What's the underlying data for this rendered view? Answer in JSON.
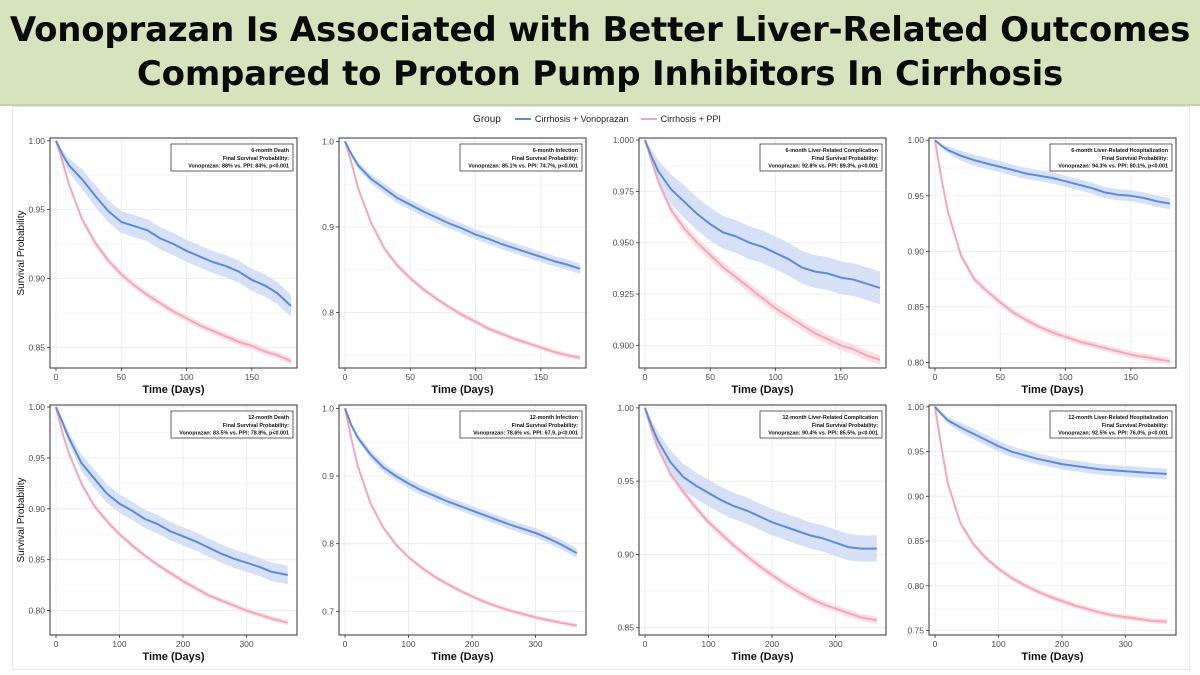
{
  "title": {
    "line1": "Vonoprazan Is Associated with Better Liver-Related Outcomes",
    "line2": "Compared to Proton Pump Inhibitors In Cirrhosis"
  },
  "legend": {
    "title": "Group",
    "entries": [
      {
        "label": "Cirrhosis + Vonoprazan",
        "color": "#5b8bd9"
      },
      {
        "label": "Cirrhosis + PPI",
        "color": "#f2a5b8"
      }
    ]
  },
  "colors": {
    "vono_line": "#5b8bd9",
    "vono_band": "#cfdcf6",
    "ppi_line": "#f4a7b9",
    "ppi_band": "#fbdbe3",
    "grid": "#ebebeb",
    "axis": "#333333"
  },
  "chart_data": [
    {
      "type": "line",
      "title": "6-month Death",
      "info_title": "Final Survival Probability:",
      "summary": "Vonoprazan: 88% vs. PPI: 84%, p<0.001",
      "xlabel": "Time (Days)",
      "ylabel": "Survival Probability",
      "xlim": [
        0,
        180
      ],
      "ylim": [
        0.835,
        1.002
      ],
      "xticks": [
        0,
        50,
        100,
        150
      ],
      "yticks": [
        "0.85",
        "0.90",
        "0.95",
        "1.00"
      ],
      "series": [
        {
          "name": "Cirrhosis + Vonoprazan",
          "x": [
            0,
            5,
            10,
            20,
            30,
            40,
            50,
            60,
            70,
            80,
            90,
            100,
            110,
            120,
            130,
            140,
            150,
            160,
            170,
            180
          ],
          "y": [
            1.0,
            0.99,
            0.982,
            0.972,
            0.96,
            0.949,
            0.941,
            0.938,
            0.935,
            0.929,
            0.925,
            0.92,
            0.916,
            0.912,
            0.909,
            0.905,
            0.899,
            0.895,
            0.889,
            0.88
          ],
          "ci": 0.008
        },
        {
          "name": "Cirrhosis + PPI",
          "x": [
            0,
            5,
            10,
            20,
            30,
            40,
            50,
            60,
            70,
            80,
            90,
            100,
            110,
            120,
            130,
            140,
            150,
            160,
            170,
            180
          ],
          "y": [
            1.0,
            0.985,
            0.968,
            0.943,
            0.926,
            0.913,
            0.903,
            0.895,
            0.888,
            0.882,
            0.876,
            0.871,
            0.866,
            0.862,
            0.858,
            0.854,
            0.851,
            0.847,
            0.844,
            0.84
          ],
          "ci": 0.0025
        }
      ]
    },
    {
      "type": "line",
      "title": "6-month Infection",
      "info_title": "Final Survival Probability:",
      "summary": "Vonoprazan: 85.1% vs. PPI: 74.7%, p<0.001",
      "xlabel": "Time (Days)",
      "ylabel": "",
      "xlim": [
        0,
        180
      ],
      "ylim": [
        0.735,
        1.004
      ],
      "xticks": [
        0,
        50,
        100,
        150
      ],
      "yticks": [
        "0.8",
        "0.9",
        "1.0"
      ],
      "series": [
        {
          "name": "Cirrhosis + Vonoprazan",
          "x": [
            0,
            5,
            10,
            20,
            30,
            40,
            50,
            60,
            70,
            80,
            90,
            100,
            110,
            120,
            130,
            140,
            150,
            160,
            170,
            180
          ],
          "y": [
            1.0,
            0.985,
            0.972,
            0.956,
            0.945,
            0.934,
            0.926,
            0.918,
            0.911,
            0.904,
            0.898,
            0.891,
            0.886,
            0.88,
            0.875,
            0.87,
            0.865,
            0.86,
            0.856,
            0.851
          ],
          "ci": 0.006
        },
        {
          "name": "Cirrhosis + PPI",
          "x": [
            0,
            5,
            10,
            20,
            30,
            40,
            50,
            60,
            70,
            80,
            90,
            100,
            110,
            120,
            130,
            140,
            150,
            160,
            170,
            180
          ],
          "y": [
            1.0,
            0.975,
            0.945,
            0.905,
            0.875,
            0.855,
            0.84,
            0.827,
            0.816,
            0.806,
            0.797,
            0.789,
            0.781,
            0.775,
            0.769,
            0.764,
            0.759,
            0.754,
            0.75,
            0.747
          ],
          "ci": 0.003
        }
      ]
    },
    {
      "type": "line",
      "title": "6-month Liver-Related Complication",
      "info_title": "Final Survival Probability:",
      "summary": "Vonoprazan: 92.8% vs. PPI: 89.3%, p<0.001",
      "xlabel": "Time (Days)",
      "ylabel": "",
      "xlim": [
        0,
        180
      ],
      "ylim": [
        0.889,
        1.001
      ],
      "xticks": [
        0,
        50,
        100,
        150
      ],
      "yticks": [
        "0.900",
        "0.925",
        "0.950",
        "0.975",
        "1.000"
      ],
      "series": [
        {
          "name": "Cirrhosis + Vonoprazan",
          "x": [
            0,
            5,
            10,
            20,
            30,
            40,
            50,
            60,
            70,
            80,
            90,
            100,
            110,
            120,
            130,
            140,
            150,
            160,
            170,
            180
          ],
          "y": [
            1.0,
            0.992,
            0.985,
            0.976,
            0.97,
            0.964,
            0.959,
            0.955,
            0.953,
            0.95,
            0.948,
            0.945,
            0.942,
            0.938,
            0.936,
            0.935,
            0.933,
            0.932,
            0.93,
            0.928
          ],
          "ci": 0.008
        },
        {
          "name": "Cirrhosis + PPI",
          "x": [
            0,
            5,
            10,
            20,
            30,
            40,
            50,
            60,
            70,
            80,
            90,
            100,
            110,
            120,
            130,
            140,
            150,
            160,
            170,
            180
          ],
          "y": [
            1.0,
            0.99,
            0.98,
            0.966,
            0.957,
            0.95,
            0.944,
            0.938,
            0.933,
            0.928,
            0.923,
            0.918,
            0.914,
            0.91,
            0.906,
            0.903,
            0.9,
            0.898,
            0.895,
            0.893
          ],
          "ci": 0.0025
        }
      ]
    },
    {
      "type": "line",
      "title": "6-month Liver-Related Hospitalization",
      "info_title": "Final Survival Probability:",
      "summary": "Vonoprazan: 94.3% vs. PPI: 80.1%, p<0.001",
      "xlabel": "Time (Days)",
      "ylabel": "",
      "xlim": [
        0,
        180
      ],
      "ylim": [
        0.795,
        1.002
      ],
      "xticks": [
        0,
        50,
        100,
        150
      ],
      "yticks": [
        "0.80",
        "0.85",
        "0.90",
        "0.95",
        "1.00"
      ],
      "series": [
        {
          "name": "Cirrhosis + Vonoprazan",
          "x": [
            0,
            5,
            10,
            20,
            30,
            40,
            50,
            60,
            70,
            80,
            90,
            100,
            110,
            120,
            130,
            140,
            150,
            160,
            170,
            180
          ],
          "y": [
            1.0,
            0.995,
            0.991,
            0.986,
            0.982,
            0.979,
            0.976,
            0.973,
            0.97,
            0.968,
            0.966,
            0.963,
            0.96,
            0.957,
            0.953,
            0.951,
            0.95,
            0.948,
            0.945,
            0.943
          ],
          "ci": 0.005
        },
        {
          "name": "Cirrhosis + PPI",
          "x": [
            0,
            5,
            10,
            20,
            30,
            40,
            50,
            60,
            70,
            80,
            90,
            100,
            110,
            120,
            130,
            140,
            150,
            160,
            170,
            180
          ],
          "y": [
            1.0,
            0.965,
            0.935,
            0.896,
            0.875,
            0.864,
            0.854,
            0.845,
            0.838,
            0.832,
            0.827,
            0.823,
            0.819,
            0.816,
            0.813,
            0.81,
            0.807,
            0.805,
            0.803,
            0.801
          ],
          "ci": 0.003
        }
      ]
    },
    {
      "type": "line",
      "title": "12-month Death",
      "info_title": "Final Survival Probability:",
      "summary": "Vonoprazan: 83.5% vs. PPI: 78.8%, p<0.001",
      "xlabel": "Time (Days)",
      "ylabel": "Survival Probability",
      "xlim": [
        0,
        370
      ],
      "ylim": [
        0.776,
        1.002
      ],
      "xticks": [
        0,
        100,
        200,
        300
      ],
      "yticks": [
        "0.80",
        "0.85",
        "0.90",
        "0.95",
        "1.00"
      ],
      "series": [
        {
          "name": "Cirrhosis + Vonoprazan",
          "x": [
            0,
            10,
            20,
            40,
            60,
            80,
            100,
            120,
            140,
            160,
            180,
            200,
            220,
            240,
            260,
            280,
            300,
            320,
            340,
            365
          ],
          "y": [
            1.0,
            0.985,
            0.97,
            0.945,
            0.93,
            0.915,
            0.905,
            0.898,
            0.89,
            0.885,
            0.878,
            0.873,
            0.868,
            0.862,
            0.856,
            0.851,
            0.847,
            0.843,
            0.838,
            0.835
          ],
          "ci": 0.009
        },
        {
          "name": "Cirrhosis + PPI",
          "x": [
            0,
            10,
            20,
            40,
            60,
            80,
            100,
            120,
            140,
            160,
            180,
            200,
            220,
            240,
            260,
            280,
            300,
            320,
            340,
            365
          ],
          "y": [
            1.0,
            0.975,
            0.955,
            0.925,
            0.903,
            0.888,
            0.875,
            0.864,
            0.854,
            0.845,
            0.837,
            0.829,
            0.822,
            0.815,
            0.81,
            0.805,
            0.8,
            0.796,
            0.792,
            0.788
          ],
          "ci": 0.0025
        }
      ]
    },
    {
      "type": "line",
      "title": "12-month Infection",
      "info_title": "Final Survival Probability:",
      "summary": "Vonoprazan: 78.6% vs. PPI: 67.9, p<0.001",
      "xlabel": "Time (Days)",
      "ylabel": "",
      "xlim": [
        0,
        370
      ],
      "ylim": [
        0.665,
        1.005
      ],
      "xticks": [
        0,
        100,
        200,
        300
      ],
      "yticks": [
        "0.7",
        "0.8",
        "0.9",
        "1.0"
      ],
      "series": [
        {
          "name": "Cirrhosis + Vonoprazan",
          "x": [
            0,
            10,
            20,
            40,
            60,
            80,
            100,
            120,
            140,
            160,
            180,
            200,
            220,
            240,
            260,
            280,
            300,
            320,
            340,
            365
          ],
          "y": [
            1.0,
            0.975,
            0.957,
            0.932,
            0.913,
            0.9,
            0.889,
            0.879,
            0.871,
            0.863,
            0.856,
            0.849,
            0.842,
            0.835,
            0.828,
            0.822,
            0.816,
            0.808,
            0.799,
            0.786
          ],
          "ci": 0.007
        },
        {
          "name": "Cirrhosis + PPI",
          "x": [
            0,
            10,
            20,
            40,
            60,
            80,
            100,
            120,
            140,
            160,
            180,
            200,
            220,
            240,
            260,
            280,
            300,
            320,
            340,
            365
          ],
          "y": [
            1.0,
            0.955,
            0.915,
            0.86,
            0.824,
            0.799,
            0.78,
            0.765,
            0.752,
            0.741,
            0.731,
            0.722,
            0.714,
            0.707,
            0.701,
            0.696,
            0.691,
            0.687,
            0.683,
            0.679
          ],
          "ci": 0.003
        }
      ]
    },
    {
      "type": "line",
      "title": "12-month Liver-Related Complication",
      "info_title": "Final Survival Probability:",
      "summary": "Vonoprazan: 90.4% vs. PPI: 85.5%, p<0.001",
      "xlabel": "Time (Days)",
      "ylabel": "",
      "xlim": [
        0,
        370
      ],
      "ylim": [
        0.845,
        1.002
      ],
      "xticks": [
        0,
        100,
        200,
        300
      ],
      "yticks": [
        "0.85",
        "0.90",
        "0.95",
        "1.00"
      ],
      "series": [
        {
          "name": "Cirrhosis + Vonoprazan",
          "x": [
            0,
            10,
            20,
            40,
            60,
            80,
            100,
            120,
            140,
            160,
            180,
            200,
            220,
            240,
            260,
            280,
            300,
            320,
            340,
            365
          ],
          "y": [
            1.0,
            0.988,
            0.978,
            0.963,
            0.953,
            0.947,
            0.942,
            0.937,
            0.933,
            0.93,
            0.926,
            0.922,
            0.919,
            0.916,
            0.913,
            0.911,
            0.908,
            0.905,
            0.904,
            0.904
          ],
          "ci": 0.009
        },
        {
          "name": "Cirrhosis + PPI",
          "x": [
            0,
            10,
            20,
            40,
            60,
            80,
            100,
            120,
            140,
            160,
            180,
            200,
            220,
            240,
            260,
            280,
            300,
            320,
            340,
            365
          ],
          "y": [
            1.0,
            0.985,
            0.973,
            0.955,
            0.943,
            0.932,
            0.922,
            0.914,
            0.906,
            0.899,
            0.892,
            0.886,
            0.88,
            0.875,
            0.87,
            0.866,
            0.863,
            0.86,
            0.857,
            0.855
          ],
          "ci": 0.0025
        }
      ]
    },
    {
      "type": "line",
      "title": "12-month Liver-Related Hospitalization",
      "info_title": "Final Survival Probability:",
      "summary": "Vonoprazan: 92.5% vs. PPI: 76.0%, p<0.001",
      "xlabel": "Time (Days)",
      "ylabel": "",
      "xlim": [
        0,
        370
      ],
      "ylim": [
        0.745,
        1.002
      ],
      "xticks": [
        0,
        100,
        200,
        300
      ],
      "yticks": [
        "0.75",
        "0.80",
        "0.85",
        "0.90",
        "0.95",
        "1.00"
      ],
      "series": [
        {
          "name": "Cirrhosis + Vonoprazan",
          "x": [
            0,
            10,
            20,
            40,
            60,
            80,
            100,
            120,
            140,
            160,
            180,
            200,
            220,
            240,
            260,
            280,
            300,
            320,
            340,
            365
          ],
          "y": [
            1.0,
            0.992,
            0.985,
            0.977,
            0.97,
            0.963,
            0.956,
            0.95,
            0.946,
            0.942,
            0.939,
            0.936,
            0.934,
            0.932,
            0.93,
            0.929,
            0.928,
            0.927,
            0.926,
            0.925
          ],
          "ci": 0.006
        },
        {
          "name": "Cirrhosis + PPI",
          "x": [
            0,
            10,
            20,
            40,
            60,
            80,
            100,
            120,
            140,
            160,
            180,
            200,
            220,
            240,
            260,
            280,
            300,
            320,
            340,
            365
          ],
          "y": [
            1.0,
            0.955,
            0.915,
            0.87,
            0.847,
            0.831,
            0.819,
            0.809,
            0.801,
            0.794,
            0.788,
            0.783,
            0.778,
            0.774,
            0.77,
            0.767,
            0.765,
            0.763,
            0.761,
            0.76
          ],
          "ci": 0.003
        }
      ]
    }
  ]
}
